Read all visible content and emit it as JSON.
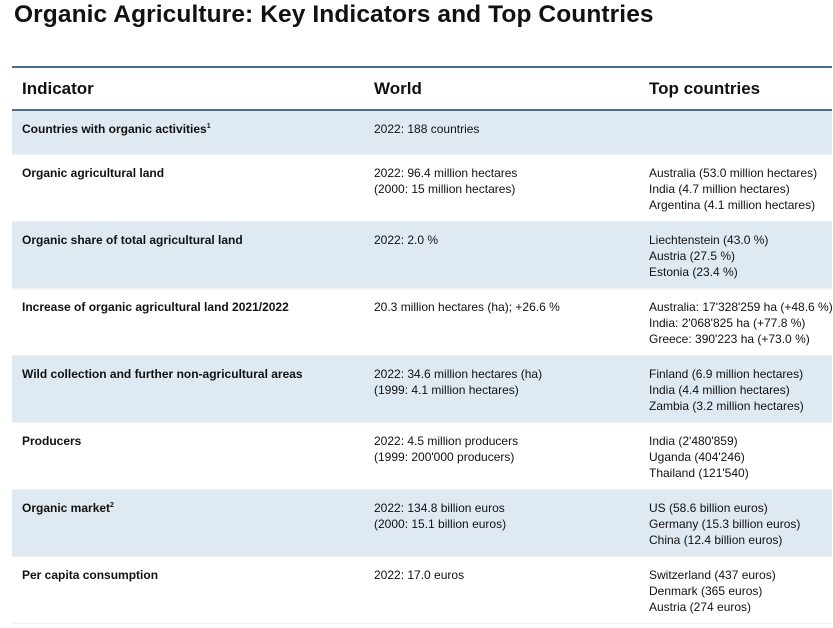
{
  "title": "Organic Agriculture: Key Indicators and Top Countries",
  "header": {
    "indicator": "Indicator",
    "world": "World",
    "top": "Top countries"
  },
  "rows": [
    {
      "indicator": "Countries with organic activities",
      "note": "1",
      "world": [
        "2022: 188 countries"
      ],
      "top": []
    },
    {
      "indicator": "Organic agricultural land",
      "note": "",
      "world": [
        "2022: 96.4 million hectares",
        "(2000: 15 million hectares)"
      ],
      "top": [
        "Australia (53.0 million hectares)",
        "India (4.7 million hectares)",
        "Argentina (4.1 million hectares)"
      ]
    },
    {
      "indicator": "Organic share of total agricultural land",
      "note": "",
      "world": [
        "2022: 2.0 %"
      ],
      "top": [
        "Liechtenstein (43.0 %)",
        "Austria (27.5 %)",
        "Estonia (23.4 %)"
      ]
    },
    {
      "indicator": "Increase of organic agricultural land 2021/2022",
      "note": "",
      "world": [
        "20.3 million hectares (ha); +26.6 %"
      ],
      "top": [
        "Australia: 17'328'259 ha (+48.6 %)",
        "India: 2'068'825 ha (+77.8 %)",
        "Greece: 390'223 ha (+73.0 %)"
      ]
    },
    {
      "indicator": "Wild collection and further non-agricultural areas",
      "note": "",
      "world": [
        "2022: 34.6 million hectares (ha)",
        "(1999: 4.1 million hectares)"
      ],
      "top": [
        "Finland (6.9 million hectares)",
        "India (4.4 million hectares)",
        "Zambia (3.2 million hectares)"
      ]
    },
    {
      "indicator": "Producers",
      "note": "",
      "world": [
        "2022: 4.5 million producers",
        "(1999: 200'000 producers)"
      ],
      "top": [
        "India (2'480'859)",
        "Uganda (404'246)",
        "Thailand (121'540)"
      ]
    },
    {
      "indicator": "Organic market",
      "note": "2",
      "world": [
        "2022: 134.8 billion euros",
        "(2000: 15.1 billion euros)"
      ],
      "top": [
        "US (58.6 billion euros)",
        "Germany (15.3 billion euros)",
        "China (12.4 billion euros)"
      ]
    },
    {
      "indicator": "Per capita consumption",
      "note": "",
      "world": [
        "2022: 17.0 euros"
      ],
      "top": [
        "Switzerland (437 euros)",
        "Denmark (365 euros)",
        "Austria (274 euros)"
      ]
    }
  ]
}
